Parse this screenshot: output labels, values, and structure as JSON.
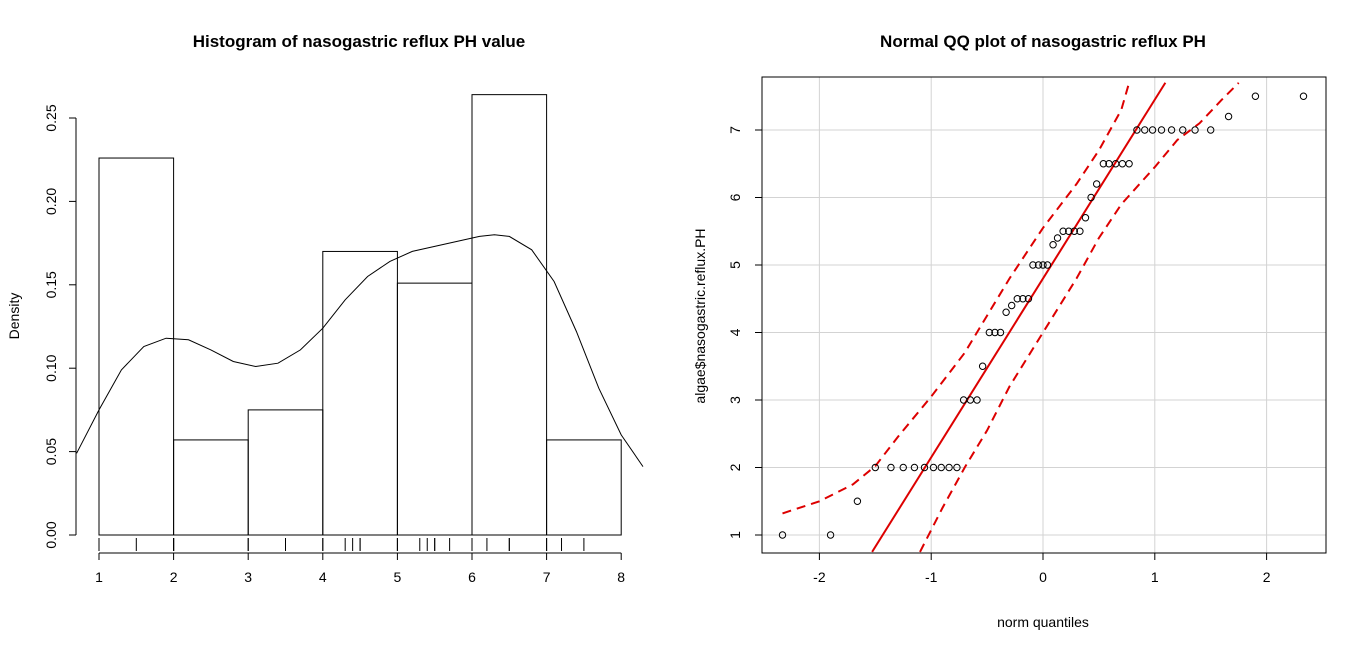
{
  "chart_data": [
    {
      "type": "bar",
      "title": "Histogram of nasogastric reflux PH value",
      "xlabel": "",
      "ylabel": "Density",
      "xlim": [
        1,
        8
      ],
      "ylim": [
        0,
        0.25
      ],
      "x_ticks": [
        "1",
        "2",
        "3",
        "4",
        "5",
        "6",
        "7",
        "8"
      ],
      "y_ticks": [
        "0.00",
        "0.05",
        "0.10",
        "0.15",
        "0.20",
        "0.25"
      ],
      "bins": [
        {
          "from": 1,
          "to": 2,
          "density": 0.226
        },
        {
          "from": 2,
          "to": 3,
          "density": 0.057
        },
        {
          "from": 3,
          "to": 4,
          "density": 0.075
        },
        {
          "from": 4,
          "to": 5,
          "density": 0.17
        },
        {
          "from": 5,
          "to": 6,
          "density": 0.151
        },
        {
          "from": 6,
          "to": 7,
          "density": 0.264
        },
        {
          "from": 7,
          "to": 8,
          "density": 0.057
        }
      ],
      "density_curve": [
        [
          0.7,
          0.049
        ],
        [
          1.0,
          0.075
        ],
        [
          1.3,
          0.099
        ],
        [
          1.6,
          0.113
        ],
        [
          1.9,
          0.118
        ],
        [
          2.2,
          0.117
        ],
        [
          2.5,
          0.111
        ],
        [
          2.8,
          0.104
        ],
        [
          3.1,
          0.101
        ],
        [
          3.4,
          0.103
        ],
        [
          3.7,
          0.111
        ],
        [
          4.0,
          0.124
        ],
        [
          4.3,
          0.141
        ],
        [
          4.6,
          0.155
        ],
        [
          4.9,
          0.164
        ],
        [
          5.2,
          0.17
        ],
        [
          5.5,
          0.173
        ],
        [
          5.8,
          0.176
        ],
        [
          6.1,
          0.179
        ],
        [
          6.3,
          0.18
        ],
        [
          6.5,
          0.179
        ],
        [
          6.8,
          0.171
        ],
        [
          7.1,
          0.152
        ],
        [
          7.4,
          0.122
        ],
        [
          7.7,
          0.088
        ],
        [
          8.0,
          0.06
        ],
        [
          8.3,
          0.041
        ]
      ],
      "rug": [
        1,
        1.5,
        2,
        2,
        2,
        2,
        3,
        3,
        3.5,
        4,
        4,
        4.3,
        4.4,
        4.5,
        4.5,
        5,
        5,
        5.3,
        5.4,
        5.5,
        5.5,
        5.7,
        6,
        6.2,
        6.5,
        6.5,
        7,
        7,
        7.2,
        7.5
      ]
    },
    {
      "type": "scatter",
      "title": "Normal QQ plot of nasogastric reflux PH",
      "xlabel": "norm quantiles",
      "ylabel": "algae$nasogastric.reflux.PH",
      "xlim": [
        -2.5,
        2.5
      ],
      "ylim": [
        0.75,
        7.7
      ],
      "x_ticks": [
        "-2",
        "-1",
        "0",
        "1",
        "2"
      ],
      "y_ticks": [
        "1",
        "2",
        "3",
        "4",
        "5",
        "6",
        "7"
      ],
      "grid": true,
      "points": [
        [
          -2.33,
          1.0
        ],
        [
          -1.9,
          1.0
        ],
        [
          -1.66,
          1.5
        ],
        [
          -1.5,
          2.0
        ],
        [
          -1.36,
          2.0
        ],
        [
          -1.25,
          2.0
        ],
        [
          -1.15,
          2.0
        ],
        [
          -1.06,
          2.0
        ],
        [
          -0.98,
          2.0
        ],
        [
          -0.91,
          2.0
        ],
        [
          -0.84,
          2.0
        ],
        [
          -0.77,
          2.0
        ],
        [
          -0.71,
          3.0
        ],
        [
          -0.65,
          3.0
        ],
        [
          -0.59,
          3.0
        ],
        [
          -0.54,
          3.5
        ],
        [
          -0.48,
          4.0
        ],
        [
          -0.43,
          4.0
        ],
        [
          -0.38,
          4.0
        ],
        [
          -0.33,
          4.3
        ],
        [
          -0.28,
          4.4
        ],
        [
          -0.23,
          4.5
        ],
        [
          -0.18,
          4.5
        ],
        [
          -0.13,
          4.5
        ],
        [
          -0.09,
          5.0
        ],
        [
          -0.04,
          5.0
        ],
        [
          0.0,
          5.0
        ],
        [
          0.04,
          5.0
        ],
        [
          0.09,
          5.3
        ],
        [
          0.13,
          5.4
        ],
        [
          0.18,
          5.5
        ],
        [
          0.23,
          5.5
        ],
        [
          0.28,
          5.5
        ],
        [
          0.33,
          5.5
        ],
        [
          0.38,
          5.7
        ],
        [
          0.43,
          6.0
        ],
        [
          0.48,
          6.2
        ],
        [
          0.54,
          6.5
        ],
        [
          0.59,
          6.5
        ],
        [
          0.65,
          6.5
        ],
        [
          0.71,
          6.5
        ],
        [
          0.77,
          6.5
        ],
        [
          0.84,
          7.0
        ],
        [
          0.91,
          7.0
        ],
        [
          0.98,
          7.0
        ],
        [
          1.06,
          7.0
        ],
        [
          1.15,
          7.0
        ],
        [
          1.25,
          7.0
        ],
        [
          1.36,
          7.0
        ],
        [
          1.5,
          7.0
        ],
        [
          1.66,
          7.2
        ],
        [
          1.9,
          7.5
        ],
        [
          2.33,
          7.5
        ]
      ],
      "reference_line": {
        "intercept": 4.8,
        "slope": 2.65
      },
      "envelope_upper": [
        [
          -2.33,
          1.32
        ],
        [
          -2.0,
          1.5
        ],
        [
          -1.7,
          1.75
        ],
        [
          -1.5,
          2.02
        ],
        [
          -1.3,
          2.45
        ],
        [
          -1.0,
          3.05
        ],
        [
          -0.7,
          3.7
        ],
        [
          -0.5,
          4.25
        ],
        [
          -0.3,
          4.8
        ],
        [
          -0.1,
          5.3
        ],
        [
          0.0,
          5.55
        ],
        [
          0.3,
          6.2
        ],
        [
          0.5,
          6.7
        ],
        [
          0.7,
          7.3
        ],
        [
          0.77,
          7.7
        ]
      ],
      "envelope_lower": [
        [
          -1.1,
          0.75
        ],
        [
          -0.9,
          1.4
        ],
        [
          -0.7,
          2.0
        ],
        [
          -0.5,
          2.55
        ],
        [
          -0.3,
          3.2
        ],
        [
          0.0,
          4.0
        ],
        [
          0.3,
          4.8
        ],
        [
          0.5,
          5.4
        ],
        [
          0.7,
          5.9
        ],
        [
          1.0,
          6.45
        ],
        [
          1.2,
          6.85
        ],
        [
          1.4,
          7.1
        ],
        [
          1.6,
          7.45
        ],
        [
          1.75,
          7.7
        ]
      ]
    }
  ],
  "colors": {
    "line": "#000000",
    "qq_line": "#dd0000",
    "grid": "#d3d3d3"
  }
}
